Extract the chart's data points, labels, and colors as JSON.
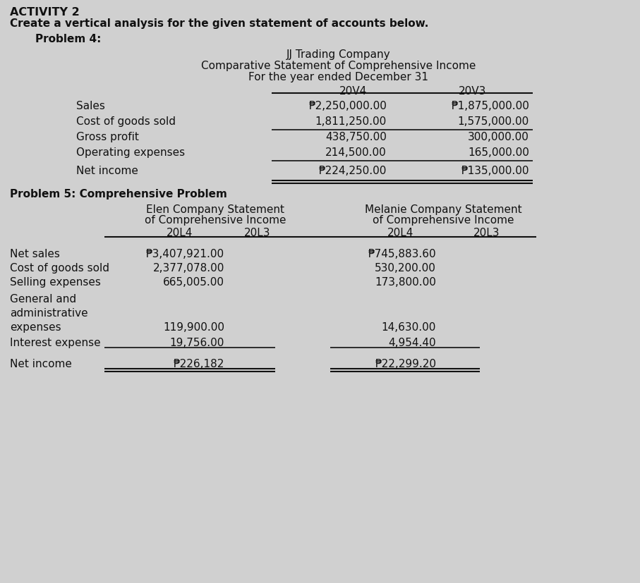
{
  "bg_color": "#d0d0d0",
  "title_activity": "ACTIVITY 2",
  "subtitle_activity": "Create a vertical analysis for the given statement of accounts below.",
  "problem4_label": "Problem 4:",
  "p4_company": "JJ Trading Company",
  "p4_statement": "Comparative Statement of Comprehensive Income",
  "p4_period": "For the year ended December 31",
  "p4_col1": "20V4",
  "p4_col2": "20V3",
  "p4_rows": [
    {
      "label": "Sales",
      "v4": "₱2,250,000.00",
      "v3": "₱1,875,000.00",
      "line_after": false
    },
    {
      "label": "Cost of goods sold",
      "v4": "1,811,250.00",
      "v3": "1,575,000.00",
      "line_after": true
    },
    {
      "label": "Gross profit",
      "v4": "438,750.00",
      "v3": "300,000.00",
      "line_after": false
    },
    {
      "label": "Operating expenses",
      "v4": "214,500.00",
      "v3": "165,000.00",
      "line_after": true
    },
    {
      "label": "Net income",
      "v4": "₱224,250.00",
      "v3": "₱135,000.00",
      "line_after": false
    }
  ],
  "problem5_label": "Problem 5: Comprehensive Problem",
  "p5_rows": [
    {
      "label": "Net sales",
      "e4": "₱3,407,921.00",
      "m4": "₱745,883.60"
    },
    {
      "label": "Cost of goods sold",
      "e4": "2,377,078.00",
      "m4": "530,200.00"
    },
    {
      "label": "Selling expenses",
      "e4": "665,005.00",
      "m4": "173,800.00"
    },
    {
      "label": "General and",
      "e4": "",
      "m4": ""
    },
    {
      "label": "administrative",
      "e4": "",
      "m4": ""
    },
    {
      "label": "expenses",
      "e4": "119,900.00",
      "m4": "14,630.00"
    },
    {
      "label": "Interest expense",
      "e4": "19,756.00",
      "m4": "4,954.40"
    },
    {
      "label": "Net income",
      "e4": "₱226,182",
      "m4": "₱22,299.20"
    }
  ]
}
